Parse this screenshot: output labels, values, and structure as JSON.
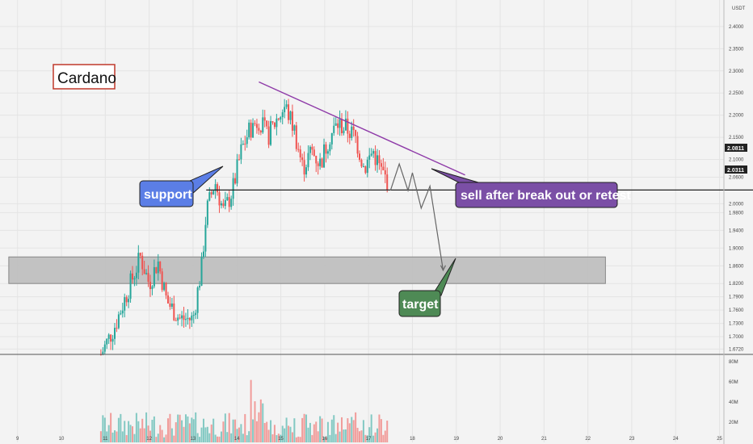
{
  "chart_data": {
    "type": "candlestick",
    "symbol": "Cardano",
    "currency": "USDT",
    "price_axis": {
      "ticks": [
        "2.4000",
        "2.3500",
        "2.3000",
        "2.2500",
        "2.2000",
        "2.1500",
        "2.1000",
        "2.0600",
        "2.0000",
        "1.9800",
        "1.9400",
        "1.9000",
        "1.8600",
        "1.8200",
        "1.7900",
        "1.7600",
        "1.7300",
        "1.7000",
        "1.6720"
      ],
      "ylim": [
        1.66,
        2.46
      ],
      "current_price": "2.0811",
      "support_price": "2.0311"
    },
    "time_axis": {
      "ticks": [
        "9",
        "10",
        "11",
        "12",
        "13",
        "14",
        "15",
        "16",
        "17",
        "18",
        "19",
        "20",
        "21",
        "22",
        "23",
        "24",
        "25"
      ],
      "xlim": [
        8.6,
        25.1
      ]
    },
    "volume_axis": {
      "ticks": [
        "80M",
        "60M",
        "40M",
        "20M"
      ],
      "ylim": [
        0,
        85
      ]
    },
    "annotations": {
      "title_box": "Cardano",
      "support": "support",
      "sell": "sell after break out or retest",
      "target": "target"
    },
    "colors": {
      "up": "#26a69a",
      "down": "#ef5350",
      "support_label": "#5b7ee6",
      "sell_label": "#7b4fa6",
      "target_label": "#4e8a55",
      "trendline": "#8e3aa8",
      "title_border": "#c0392b",
      "target_zone": "#bdbdbd"
    },
    "levels": {
      "support_line": 2.0311,
      "target_zone": [
        1.82,
        1.88
      ]
    },
    "trendline": {
      "from": [
        14.5,
        2.275
      ],
      "to": [
        19.2,
        2.065
      ]
    },
    "projection": [
      [
        17.5,
        2.03
      ],
      [
        17.7,
        2.09
      ],
      [
        17.9,
        2.03
      ],
      [
        18.0,
        2.07
      ],
      [
        18.2,
        1.99
      ],
      [
        18.4,
        2.04
      ],
      [
        18.7,
        1.85
      ]
    ],
    "candles_anchor": [
      [
        10.9,
        1.66
      ],
      [
        11.2,
        1.72
      ],
      [
        11.5,
        1.8
      ],
      [
        11.8,
        1.88
      ],
      [
        12.0,
        1.82
      ],
      [
        12.2,
        1.87
      ],
      [
        12.4,
        1.78
      ],
      [
        12.7,
        1.74
      ],
      [
        13.0,
        1.74
      ],
      [
        13.2,
        1.86
      ],
      [
        13.3,
        1.98
      ],
      [
        13.5,
        2.05
      ],
      [
        13.7,
        1.98
      ],
      [
        13.9,
        2.03
      ],
      [
        14.1,
        2.12
      ],
      [
        14.3,
        2.17
      ],
      [
        14.5,
        2.19
      ],
      [
        14.7,
        2.15
      ],
      [
        14.9,
        2.19
      ],
      [
        15.1,
        2.22
      ],
      [
        15.3,
        2.17
      ],
      [
        15.5,
        2.08
      ],
      [
        15.7,
        2.12
      ],
      [
        15.9,
        2.09
      ],
      [
        16.1,
        2.15
      ],
      [
        16.3,
        2.18
      ],
      [
        16.5,
        2.17
      ],
      [
        16.7,
        2.15
      ],
      [
        16.9,
        2.08
      ],
      [
        17.1,
        2.12
      ],
      [
        17.3,
        2.07
      ],
      [
        17.45,
        2.05
      ]
    ]
  }
}
